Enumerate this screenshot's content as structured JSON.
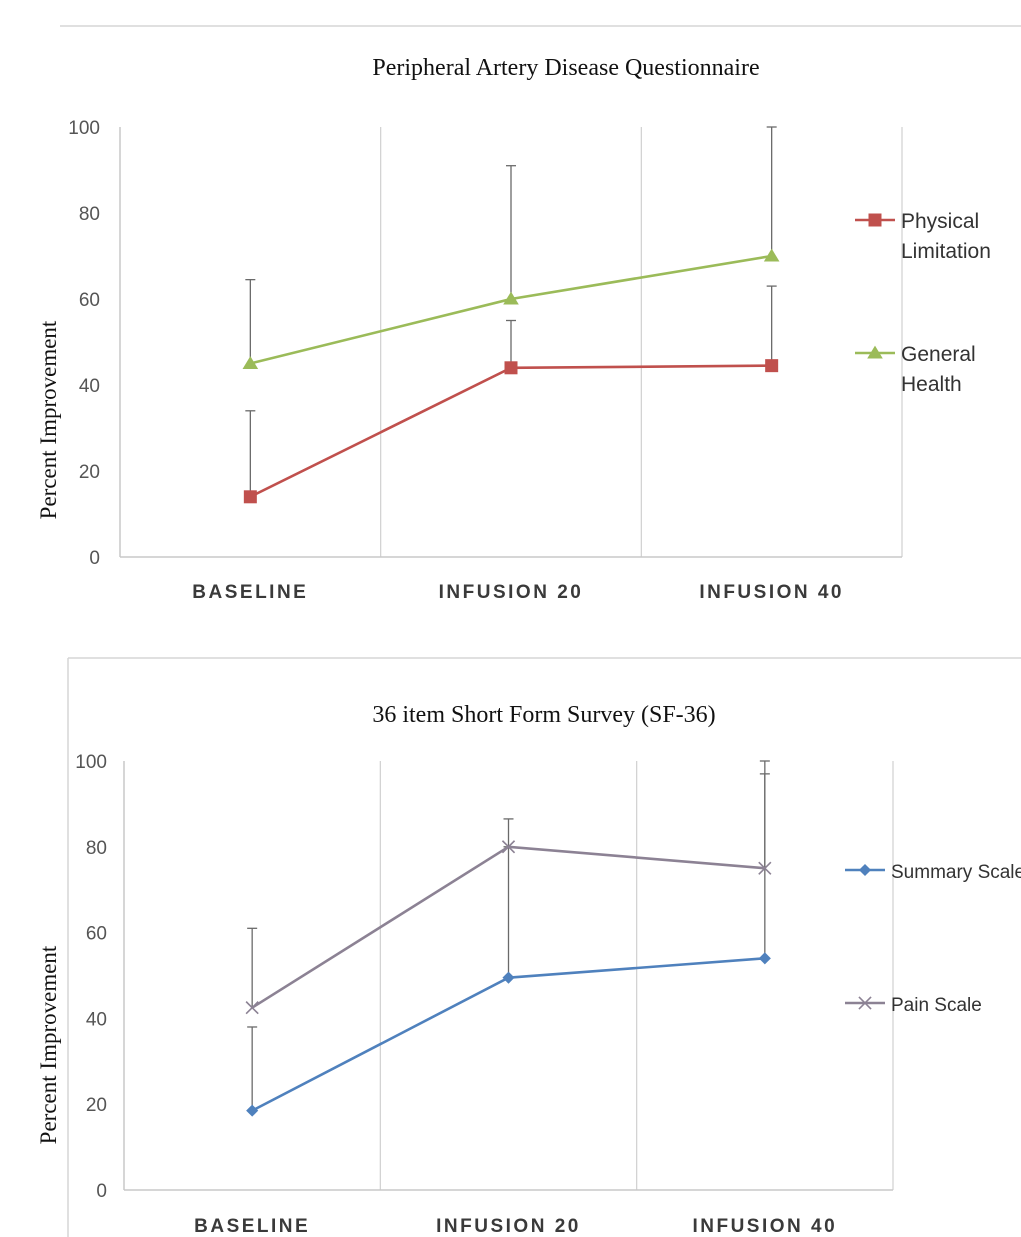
{
  "chart_data": [
    {
      "type": "line",
      "title": "Peripheral Artery Disease Questionnaire",
      "ylabel": "Percent Improvement",
      "xlabel": "",
      "categories": [
        "BASELINE",
        "INFUSION 20",
        "INFUSION 40"
      ],
      "ylim": [
        0,
        100
      ],
      "yticks": [
        "0",
        "20",
        "40",
        "60",
        "80",
        "100"
      ],
      "grid": "vertical",
      "legend_position": "right",
      "series": [
        {
          "name": "Physical Limitation",
          "name_lines": [
            "Physical",
            "Limitation"
          ],
          "values": [
            14,
            44,
            44.5
          ],
          "error_upper": [
            34,
            55,
            63
          ],
          "color": "#c0504d",
          "marker": "square"
        },
        {
          "name": "General Health",
          "name_lines": [
            "General",
            "Health"
          ],
          "values": [
            45,
            60,
            70
          ],
          "error_upper": [
            64.5,
            91,
            100
          ],
          "color": "#9bbb59",
          "marker": "triangle"
        }
      ]
    },
    {
      "type": "line",
      "title": "36 item Short Form Survey (SF-36)",
      "ylabel": "Percent Improvement",
      "xlabel": "",
      "categories": [
        "BASELINE",
        "INFUSION 20",
        "INFUSION 40"
      ],
      "ylim": [
        0,
        100
      ],
      "yticks": [
        "0",
        "20",
        "40",
        "60",
        "80",
        "100"
      ],
      "grid": "vertical",
      "legend_position": "right",
      "series": [
        {
          "name": "Summary Scale",
          "name_lines": [
            "Summary Scale"
          ],
          "values": [
            18.5,
            49.5,
            54
          ],
          "error_upper": [
            38,
            80,
            97
          ],
          "color": "#4f81bd",
          "marker": "diamond"
        },
        {
          "name": "Pain Scale",
          "name_lines": [
            "Pain Scale"
          ],
          "values": [
            42.5,
            80,
            75
          ],
          "error_upper": [
            61,
            86.5,
            100
          ],
          "color": "#8c8294",
          "marker": "x"
        }
      ]
    }
  ]
}
